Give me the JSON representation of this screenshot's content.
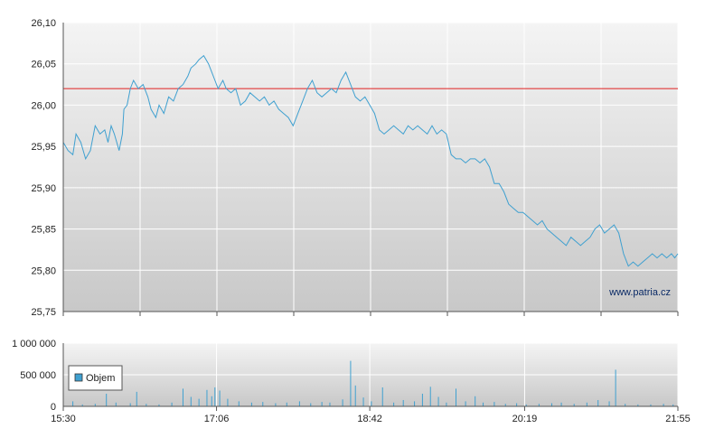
{
  "chart_data": [
    {
      "type": "line",
      "name": "price-chart",
      "ylim": [
        25.75,
        26.1
      ],
      "y_ticks": [
        "26,10",
        "26,05",
        "26,00",
        "25,95",
        "25,90",
        "25,85",
        "25,80",
        "25,75"
      ],
      "y_tick_values": [
        26.1,
        26.05,
        26.0,
        25.95,
        25.9,
        25.85,
        25.8,
        25.75
      ],
      "x_range_minutes": [
        930,
        1315
      ],
      "reference_line": {
        "value": 26.02,
        "color": "#e02020"
      },
      "line_color": "#3fa0d0",
      "watermark": "www.patria.cz",
      "series": [
        {
          "values": [
            [
              930,
              25.955
            ],
            [
              933,
              25.945
            ],
            [
              936,
              25.94
            ],
            [
              938,
              25.965
            ],
            [
              941,
              25.955
            ],
            [
              944,
              25.935
            ],
            [
              947,
              25.945
            ],
            [
              950,
              25.975
            ],
            [
              953,
              25.965
            ],
            [
              956,
              25.97
            ],
            [
              958,
              25.955
            ],
            [
              960,
              25.975
            ],
            [
              962,
              25.965
            ],
            [
              965,
              25.945
            ],
            [
              967,
              25.965
            ],
            [
              968,
              25.995
            ],
            [
              970,
              26.0
            ],
            [
              972,
              26.02
            ],
            [
              974,
              26.03
            ],
            [
              977,
              26.02
            ],
            [
              980,
              26.025
            ],
            [
              983,
              26.01
            ],
            [
              985,
              25.995
            ],
            [
              988,
              25.985
            ],
            [
              990,
              26.0
            ],
            [
              993,
              25.99
            ],
            [
              996,
              26.01
            ],
            [
              999,
              26.005
            ],
            [
              1002,
              26.02
            ],
            [
              1005,
              26.025
            ],
            [
              1008,
              26.035
            ],
            [
              1010,
              26.045
            ],
            [
              1013,
              26.05
            ],
            [
              1015,
              26.055
            ],
            [
              1018,
              26.06
            ],
            [
              1021,
              26.05
            ],
            [
              1023,
              26.04
            ],
            [
              1025,
              26.03
            ],
            [
              1027,
              26.02
            ],
            [
              1030,
              26.03
            ],
            [
              1032,
              26.02
            ],
            [
              1035,
              26.015
            ],
            [
              1038,
              26.02
            ],
            [
              1041,
              26.0
            ],
            [
              1044,
              26.005
            ],
            [
              1047,
              26.015
            ],
            [
              1050,
              26.01
            ],
            [
              1053,
              26.005
            ],
            [
              1056,
              26.01
            ],
            [
              1059,
              26.0
            ],
            [
              1062,
              26.005
            ],
            [
              1065,
              25.995
            ],
            [
              1068,
              25.99
            ],
            [
              1071,
              25.985
            ],
            [
              1074,
              25.975
            ],
            [
              1077,
              25.99
            ],
            [
              1080,
              26.005
            ],
            [
              1083,
              26.02
            ],
            [
              1086,
              26.03
            ],
            [
              1089,
              26.015
            ],
            [
              1092,
              26.01
            ],
            [
              1095,
              26.015
            ],
            [
              1098,
              26.02
            ],
            [
              1101,
              26.015
            ],
            [
              1104,
              26.03
            ],
            [
              1107,
              26.04
            ],
            [
              1110,
              26.025
            ],
            [
              1113,
              26.01
            ],
            [
              1116,
              26.005
            ],
            [
              1119,
              26.01
            ],
            [
              1122,
              26.0
            ],
            [
              1125,
              25.99
            ],
            [
              1128,
              25.97
            ],
            [
              1131,
              25.965
            ],
            [
              1134,
              25.97
            ],
            [
              1137,
              25.975
            ],
            [
              1140,
              25.97
            ],
            [
              1143,
              25.965
            ],
            [
              1146,
              25.975
            ],
            [
              1149,
              25.97
            ],
            [
              1152,
              25.975
            ],
            [
              1155,
              25.97
            ],
            [
              1158,
              25.965
            ],
            [
              1161,
              25.975
            ],
            [
              1164,
              25.965
            ],
            [
              1167,
              25.97
            ],
            [
              1170,
              25.965
            ],
            [
              1173,
              25.94
            ],
            [
              1176,
              25.935
            ],
            [
              1179,
              25.935
            ],
            [
              1182,
              25.93
            ],
            [
              1185,
              25.935
            ],
            [
              1188,
              25.935
            ],
            [
              1191,
              25.93
            ],
            [
              1194,
              25.935
            ],
            [
              1197,
              25.925
            ],
            [
              1200,
              25.905
            ],
            [
              1203,
              25.905
            ],
            [
              1206,
              25.895
            ],
            [
              1209,
              25.88
            ],
            [
              1212,
              25.875
            ],
            [
              1215,
              25.87
            ],
            [
              1218,
              25.87
            ],
            [
              1221,
              25.865
            ],
            [
              1224,
              25.86
            ],
            [
              1227,
              25.855
            ],
            [
              1230,
              25.86
            ],
            [
              1233,
              25.85
            ],
            [
              1236,
              25.845
            ],
            [
              1239,
              25.84
            ],
            [
              1242,
              25.835
            ],
            [
              1245,
              25.83
            ],
            [
              1248,
              25.84
            ],
            [
              1251,
              25.835
            ],
            [
              1254,
              25.83
            ],
            [
              1257,
              25.835
            ],
            [
              1260,
              25.84
            ],
            [
              1263,
              25.85
            ],
            [
              1266,
              25.855
            ],
            [
              1269,
              25.845
            ],
            [
              1272,
              25.85
            ],
            [
              1275,
              25.855
            ],
            [
              1278,
              25.845
            ],
            [
              1281,
              25.82
            ],
            [
              1284,
              25.805
            ],
            [
              1287,
              25.81
            ],
            [
              1290,
              25.805
            ],
            [
              1293,
              25.81
            ],
            [
              1296,
              25.815
            ],
            [
              1299,
              25.82
            ],
            [
              1302,
              25.815
            ],
            [
              1305,
              25.82
            ],
            [
              1308,
              25.815
            ],
            [
              1311,
              25.82
            ],
            [
              1313,
              25.815
            ],
            [
              1315,
              25.82
            ]
          ]
        }
      ]
    },
    {
      "type": "bar",
      "name": "volume-chart",
      "ylim": [
        0,
        1000000
      ],
      "y_ticks": [
        "1 000 000",
        "500 000",
        "0"
      ],
      "y_tick_values": [
        1000000,
        500000,
        0
      ],
      "x_range_minutes": [
        930,
        1315
      ],
      "x_ticks": [
        "15:30",
        "17:06",
        "18:42",
        "20:19",
        "21:55"
      ],
      "x_tick_values": [
        930,
        1026,
        1122,
        1219,
        1315
      ],
      "bar_color": "#3fa0d0",
      "legend": {
        "label": "Objem",
        "placement": "top-left"
      },
      "series": [
        {
          "name": "Objem",
          "values": [
            [
              936,
              80000
            ],
            [
              942,
              30000
            ],
            [
              950,
              40000
            ],
            [
              957,
              200000
            ],
            [
              963,
              60000
            ],
            [
              972,
              50000
            ],
            [
              976,
              230000
            ],
            [
              982,
              40000
            ],
            [
              990,
              30000
            ],
            [
              998,
              60000
            ],
            [
              1005,
              280000
            ],
            [
              1010,
              150000
            ],
            [
              1015,
              120000
            ],
            [
              1020,
              260000
            ],
            [
              1023,
              160000
            ],
            [
              1025,
              300000
            ],
            [
              1028,
              250000
            ],
            [
              1033,
              120000
            ],
            [
              1040,
              80000
            ],
            [
              1048,
              60000
            ],
            [
              1055,
              70000
            ],
            [
              1063,
              50000
            ],
            [
              1070,
              60000
            ],
            [
              1078,
              80000
            ],
            [
              1085,
              50000
            ],
            [
              1092,
              70000
            ],
            [
              1097,
              60000
            ],
            [
              1105,
              110000
            ],
            [
              1110,
              720000
            ],
            [
              1113,
              330000
            ],
            [
              1118,
              140000
            ],
            [
              1123,
              80000
            ],
            [
              1130,
              300000
            ],
            [
              1137,
              60000
            ],
            [
              1143,
              100000
            ],
            [
              1150,
              80000
            ],
            [
              1155,
              200000
            ],
            [
              1160,
              310000
            ],
            [
              1165,
              150000
            ],
            [
              1170,
              60000
            ],
            [
              1176,
              280000
            ],
            [
              1182,
              80000
            ],
            [
              1188,
              160000
            ],
            [
              1193,
              60000
            ],
            [
              1200,
              70000
            ],
            [
              1207,
              40000
            ],
            [
              1214,
              50000
            ],
            [
              1220,
              30000
            ],
            [
              1228,
              40000
            ],
            [
              1236,
              50000
            ],
            [
              1242,
              60000
            ],
            [
              1250,
              40000
            ],
            [
              1258,
              60000
            ],
            [
              1265,
              100000
            ],
            [
              1272,
              80000
            ],
            [
              1276,
              580000
            ],
            [
              1282,
              40000
            ],
            [
              1290,
              30000
            ],
            [
              1298,
              30000
            ],
            [
              1306,
              40000
            ],
            [
              1312,
              30000
            ]
          ]
        }
      ]
    }
  ]
}
